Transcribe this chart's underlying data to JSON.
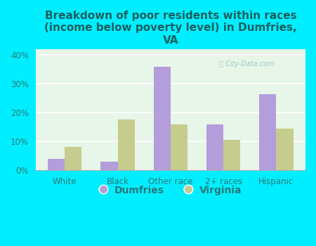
{
  "title": "Breakdown of poor residents within races\n(income below poverty level) in Dumfries,\nVA",
  "categories": [
    "White",
    "Black",
    "Other race",
    "2+ races",
    "Hispanic"
  ],
  "dumfries": [
    4.0,
    3.0,
    36.0,
    16.0,
    26.5
  ],
  "virginia": [
    8.0,
    17.5,
    16.0,
    10.5,
    14.5
  ],
  "dumfries_color": "#b39ddb",
  "virginia_color": "#c5cc8e",
  "background_outer": "#00eeff",
  "background_inner": "#e8f5e9",
  "title_color": "#1a6060",
  "tick_label_color": "#2a7a7a",
  "ylim": [
    0,
    42
  ],
  "yticks": [
    0,
    10,
    20,
    30,
    40
  ],
  "bar_width": 0.32,
  "legend_labels": [
    "Dumfries",
    "Virginia"
  ]
}
